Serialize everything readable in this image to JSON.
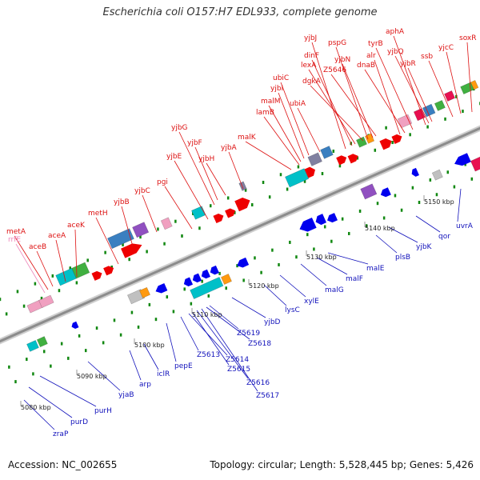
{
  "title": "Escherichia coli O157:H7 EDL933, complete genome",
  "accession": "Accession: NC_002655",
  "summary": "Topology: circular; Length: 5,528,445 bp; Genes: 5,426",
  "colors": {
    "top_label": "#dd1111",
    "bottom_label": "#1111bb",
    "pink_label": "#ee88bb",
    "forward": "#ee0000",
    "reverse": "#0000ee",
    "ruler": "#888888",
    "dots": "#118811"
  },
  "ruler_ticks": [
    "5080 kbp",
    "5090 kbp",
    "5100 kbp",
    "5110 kbp",
    "5120 kbp",
    "5130 kbp",
    "5140 kbp",
    "5150 kbp"
  ],
  "top_labels": [
    "metA",
    "rrfE",
    "aceB",
    "aceA",
    "aceK",
    "metH",
    "yjbB",
    "yjbC",
    "pgi",
    "yjbE",
    "yjbG",
    "yjbF",
    "yjbH",
    "yjbA",
    "malK",
    "lamB",
    "malM",
    "yjbI",
    "ubiC",
    "ubiA",
    "yjbJ",
    "dinF",
    "lexA",
    "dgkA",
    "pspG",
    "yjbN",
    "Z5646",
    "alr",
    "dnaB",
    "tyrB",
    "aphA",
    "yjbQ",
    "yjbR",
    "ssb",
    "yjcC",
    "soxR"
  ],
  "bottom_labels": [
    "zraP",
    "purD",
    "purH",
    "yjaB",
    "arp",
    "iclR",
    "pepE",
    "Z5613",
    "Z5614",
    "Z5615",
    "Z5616",
    "Z5617",
    "Z5618",
    "Z5619",
    "yjbD",
    "lysC",
    "xylE",
    "malG",
    "malF",
    "malE",
    "plsB",
    "yjbK",
    "qor",
    "uvrA"
  ]
}
